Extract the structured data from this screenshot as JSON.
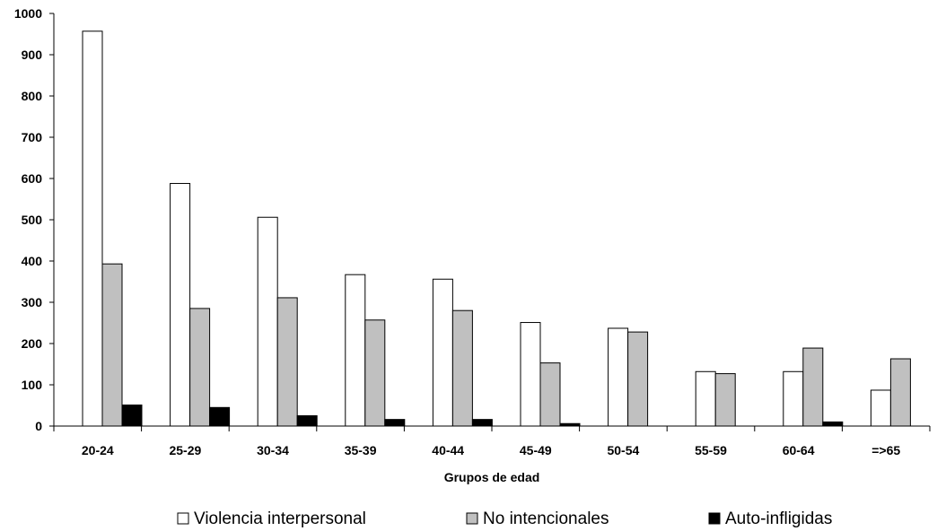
{
  "chart_data": {
    "type": "bar",
    "title": "",
    "xlabel": "Grupos de edad",
    "ylabel": "",
    "categories": [
      "20-24",
      "25-29",
      "30-34",
      "35-39",
      "40-44",
      "45-49",
      "50-54",
      "55-59",
      "60-64",
      "=>65"
    ],
    "ylim": [
      0,
      1000
    ],
    "yticks": [
      0,
      100,
      200,
      300,
      400,
      500,
      600,
      700,
      800,
      900,
      1000
    ],
    "grid": false,
    "legend_position": "bottom",
    "series": [
      {
        "name": "Violencia interpersonal",
        "color": "#ffffff",
        "values": [
          957,
          588,
          506,
          367,
          356,
          251,
          237,
          132,
          132,
          87
        ]
      },
      {
        "name": "No intencionales",
        "color": "#c0c0c0",
        "values": [
          393,
          285,
          311,
          257,
          280,
          153,
          228,
          127,
          189,
          163
        ]
      },
      {
        "name": "Auto-infligidas",
        "color": "#000000",
        "values": [
          51,
          45,
          25,
          16,
          16,
          6,
          0,
          0,
          10,
          0
        ]
      }
    ]
  }
}
